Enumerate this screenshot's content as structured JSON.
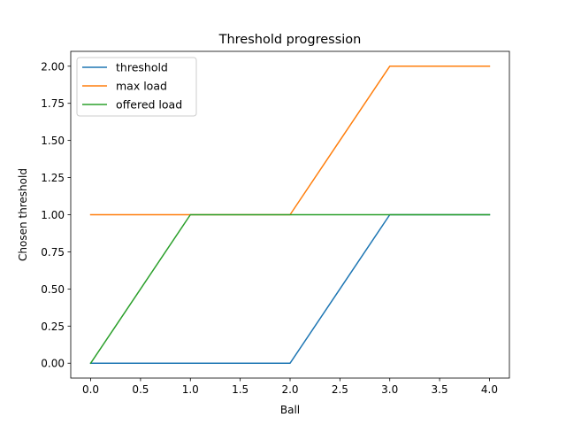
{
  "chart_data": {
    "type": "line",
    "title": "Threshold progression",
    "xlabel": "Ball",
    "ylabel": "Chosen threshold",
    "x": [
      0,
      1,
      2,
      3,
      4
    ],
    "series": [
      {
        "name": "threshold",
        "values": [
          0,
          0,
          0,
          1,
          1
        ],
        "color": "#1f77b4"
      },
      {
        "name": "max load",
        "values": [
          1,
          1,
          1,
          2,
          2
        ],
        "color": "#ff7f0e"
      },
      {
        "name": "offered load",
        "values": [
          0,
          1,
          1,
          1,
          1
        ],
        "color": "#2ca02c"
      }
    ],
    "xlim": [
      -0.2,
      4.2
    ],
    "ylim": [
      -0.1,
      2.1
    ],
    "xticks": [
      0,
      0.5,
      1,
      1.5,
      2,
      2.5,
      3,
      3.5,
      4
    ],
    "xtick_labels": [
      "0.0",
      "0.5",
      "1.0",
      "1.5",
      "2.0",
      "2.5",
      "3.0",
      "3.5",
      "4.0"
    ],
    "yticks": [
      0,
      0.25,
      0.5,
      0.75,
      1,
      1.25,
      1.5,
      1.75,
      2
    ],
    "ytick_labels": [
      "0.00",
      "0.25",
      "0.50",
      "0.75",
      "1.00",
      "1.25",
      "1.50",
      "1.75",
      "2.00"
    ],
    "grid": false,
    "legend_position": "upper left"
  }
}
